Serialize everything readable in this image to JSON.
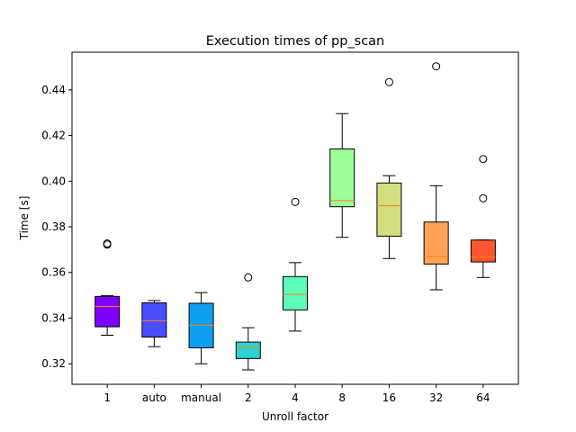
{
  "chart_data": {
    "type": "boxplot",
    "title": "Execution times of pp_scan",
    "xlabel": "Unroll factor",
    "ylabel": "Time [s]",
    "ylim": [
      0.311,
      0.4565
    ],
    "yticks": [
      0.32,
      0.34,
      0.36,
      0.38,
      0.4,
      0.42,
      0.44
    ],
    "ytick_labels": [
      "0.32",
      "0.34",
      "0.36",
      "0.38",
      "0.40",
      "0.42",
      "0.44"
    ],
    "grid": false,
    "categories": [
      "1",
      "auto",
      "manual",
      "2",
      "4",
      "8",
      "16",
      "32",
      "64"
    ],
    "boxes": [
      {
        "label": "1",
        "whislo": 0.3325,
        "q1": 0.3362,
        "median": 0.3451,
        "q3": 0.3495,
        "whishi": 0.3499,
        "fliers": [
          0.3722,
          0.3727
        ],
        "color": "#8000ff"
      },
      {
        "label": "auto",
        "whislo": 0.3275,
        "q1": 0.3317,
        "median": 0.3389,
        "q3": 0.3467,
        "whishi": 0.3477,
        "fliers": [],
        "color": "#4a4dff"
      },
      {
        "label": "manual",
        "whislo": 0.32,
        "q1": 0.327,
        "median": 0.3369,
        "q3": 0.3465,
        "whishi": 0.3512,
        "fliers": [],
        "color": "#109ff0"
      },
      {
        "label": "2",
        "whislo": 0.3173,
        "q1": 0.3223,
        "median": 0.327,
        "q3": 0.3295,
        "whishi": 0.3358,
        "fliers": [
          0.3578
        ],
        "color": "#2ad3d4"
      },
      {
        "label": "4",
        "whislo": 0.3343,
        "q1": 0.3436,
        "median": 0.3504,
        "q3": 0.3582,
        "whishi": 0.3643,
        "fliers": [
          0.3909
        ],
        "color": "#5cfdb8"
      },
      {
        "label": "8",
        "whislo": 0.3754,
        "q1": 0.3888,
        "median": 0.3915,
        "q3": 0.4141,
        "whishi": 0.4296,
        "fliers": [],
        "color": "#9cfc98"
      },
      {
        "label": "16",
        "whislo": 0.3661,
        "q1": 0.3759,
        "median": 0.3892,
        "q3": 0.3992,
        "whishi": 0.4024,
        "fliers": [
          0.4434
        ],
        "color": "#d4dd80"
      },
      {
        "label": "32",
        "whislo": 0.3524,
        "q1": 0.3637,
        "median": 0.367,
        "q3": 0.3821,
        "whishi": 0.398,
        "fliers": [
          0.4503
        ],
        "color": "#ffa256"
      },
      {
        "label": "64",
        "whislo": 0.3578,
        "q1": 0.3646,
        "median": 0.3667,
        "q3": 0.3742,
        "whishi": 0.3742,
        "fliers": [
          0.3925,
          0.4097
        ],
        "color": "#ff5530"
      }
    ],
    "median_color": "#ff7f0e"
  }
}
